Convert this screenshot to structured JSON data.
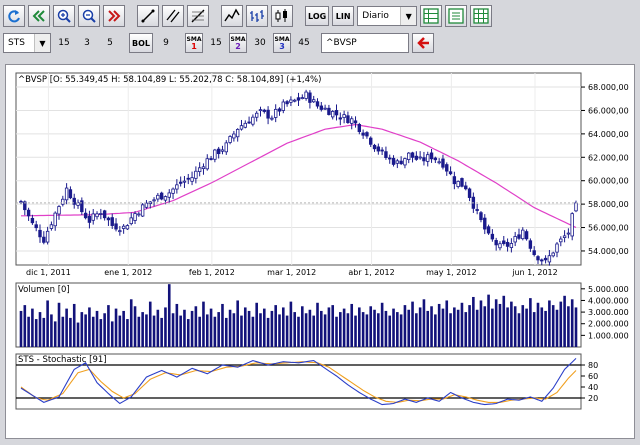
{
  "toolbar": {
    "log_label": "LOG",
    "lin_label": "LIN",
    "period_value": "Diario",
    "indicator_value": "STS",
    "sts_params": [
      "15",
      "3",
      "5"
    ],
    "bol_label": "BOL",
    "bol_param": "9",
    "sma_label": "SMA",
    "sma": [
      {
        "n": "1",
        "param": "15"
      },
      {
        "n": "2",
        "param": "30"
      },
      {
        "n": "3",
        "param": "45"
      }
    ],
    "symbol_value": "^BVSP",
    "icons": [
      "refresh-icon",
      "double-left-icon",
      "zoom-in-icon",
      "zoom-out-icon",
      "double-right-icon",
      "line-tool-icon",
      "channel-tool-icon",
      "fibonacci-tool-icon",
      "line-chart-icon",
      "ohlc-chart-icon",
      "candle-chart-icon",
      "grid-icon",
      "properties-icon",
      "table-icon",
      "back-arrow-icon"
    ]
  },
  "chart_data": [
    {
      "type": "ohlc",
      "title": "^BVSP [O: 55.349,45  H: 58.104,89  L: 55.202,78  C: 58.104,89] (+1,4%)",
      "x": [
        "dic 1, 2011",
        "ene 1, 2012",
        "feb 1, 2012",
        "mar 1, 2012",
        "abr 1, 2012",
        "may 1, 2012",
        "jun 1, 2012"
      ],
      "ylim": [
        52800,
        69200
      ],
      "yticks": [
        "54.000,00",
        "56.000,00",
        "58.000,00",
        "60.000,00",
        "62.000,00",
        "64.000,00",
        "66.000,00",
        "68.000,00"
      ],
      "ytick_values": [
        54000,
        56000,
        58000,
        60000,
        62000,
        64000,
        66000,
        68000
      ],
      "close_anchors": [
        [
          0,
          58200
        ],
        [
          3,
          56300
        ],
        [
          6,
          55000
        ],
        [
          9,
          57200
        ],
        [
          12,
          59300
        ],
        [
          15,
          57800
        ],
        [
          18,
          56600
        ],
        [
          21,
          57400
        ],
        [
          24,
          56200
        ],
        [
          27,
          56000
        ],
        [
          30,
          57200
        ],
        [
          33,
          58000
        ],
        [
          36,
          58600
        ],
        [
          39,
          59000
        ],
        [
          42,
          59800
        ],
        [
          45,
          60300
        ],
        [
          48,
          61500
        ],
        [
          51,
          62300
        ],
        [
          54,
          63000
        ],
        [
          57,
          64500
        ],
        [
          60,
          65200
        ],
        [
          63,
          65800
        ],
        [
          66,
          65500
        ],
        [
          69,
          66400
        ],
        [
          72,
          66800
        ],
        [
          75,
          67300
        ],
        [
          78,
          66400
        ],
        [
          81,
          66000
        ],
        [
          84,
          65500
        ],
        [
          87,
          65200
        ],
        [
          90,
          64200
        ],
        [
          93,
          63000
        ],
        [
          96,
          62000
        ],
        [
          99,
          61500
        ],
        [
          102,
          62200
        ],
        [
          105,
          61700
        ],
        [
          108,
          62100
        ],
        [
          111,
          61500
        ],
        [
          114,
          60000
        ],
        [
          117,
          59500
        ],
        [
          120,
          57200
        ],
        [
          123,
          55200
        ],
        [
          126,
          54300
        ],
        [
          129,
          54600
        ],
        [
          132,
          55800
        ],
        [
          135,
          53800
        ],
        [
          138,
          53000
        ],
        [
          141,
          54500
        ],
        [
          144,
          55600
        ],
        [
          146,
          58100
        ]
      ],
      "last_close": 58104.89,
      "series": [
        {
          "name": "^BVSP",
          "color": "#1a1a8c"
        },
        {
          "name": "SMA",
          "color": "#e040c8",
          "values": [
            [
              0,
              57000
            ],
            [
              20,
              57100
            ],
            [
              30,
              57300
            ],
            [
              40,
              58300
            ],
            [
              50,
              59800
            ],
            [
              60,
              61500
            ],
            [
              70,
              63200
            ],
            [
              80,
              64400
            ],
            [
              88,
              64800
            ],
            [
              95,
              64400
            ],
            [
              105,
              63300
            ],
            [
              115,
              61700
            ],
            [
              125,
              59800
            ],
            [
              135,
              57700
            ],
            [
              146,
              56000
            ]
          ]
        }
      ]
    },
    {
      "type": "bar",
      "title": "Volumen [0]",
      "ylim": [
        0,
        5500000
      ],
      "yticks": [
        "1.000.000",
        "2.000.000",
        "3.000.000",
        "4.000.000",
        "5.000.000"
      ],
      "ytick_values": [
        1000000,
        2000000,
        3000000,
        4000000,
        5000000
      ],
      "values_m": [
        3.1,
        3.6,
        2.6,
        3.3,
        2.4,
        3.0,
        2.5,
        4.0,
        2.8,
        2.2,
        3.8,
        2.6,
        3.3,
        2.5,
        3.7,
        2.1,
        3.0,
        2.8,
        3.4,
        2.6,
        3.1,
        2.4,
        2.9,
        3.6,
        2.2,
        3.3,
        2.7,
        3.1,
        2.4,
        4.1,
        3.5,
        2.6,
        3.0,
        2.8,
        3.9,
        2.7,
        3.2,
        2.5,
        3.4,
        5.4,
        2.9,
        3.7,
        2.7,
        3.2,
        2.4,
        3.1,
        3.5,
        2.6,
        3.9,
        2.8,
        3.3,
        2.6,
        3.0,
        3.7,
        2.5,
        3.2,
        2.9,
        4.0,
        2.7,
        3.4,
        3.1,
        2.6,
        3.8,
        2.9,
        3.3,
        2.5,
        3.1,
        3.6,
        2.8,
        3.4,
        2.7,
        3.9,
        3.0,
        2.6,
        3.5,
        2.9,
        3.2,
        2.7,
        3.8,
        3.1,
        2.8,
        3.4,
        3.6,
        2.6,
        3.0,
        3.3,
        2.9,
        3.7,
        2.7,
        3.4,
        3.0,
        2.8,
        3.5,
        3.2,
        2.9,
        3.8,
        3.1,
        2.7,
        3.3,
        3.0,
        2.8,
        3.6,
        3.2,
        3.9,
        2.9,
        3.4,
        4.1,
        3.1,
        3.5,
        2.8,
        3.7,
        3.3,
        4.0,
        2.9,
        3.4,
        3.2,
        3.8,
        3.0,
        3.6,
        4.3,
        3.2,
        4.0,
        3.5,
        4.5,
        3.3,
        4.1,
        3.7,
        4.4,
        3.4,
        3.9,
        3.5,
        2.9,
        3.6,
        3.3,
        4.2,
        3.0,
        3.8,
        3.4,
        3.1,
        4.0,
        3.6,
        3.2,
        3.9,
        4.4,
        3.5,
        4.1,
        3.4
      ],
      "series": [
        {
          "name": "Volumen",
          "color": "#12127a"
        }
      ]
    },
    {
      "type": "line",
      "title": "STS - Stochastic [91]",
      "ylim": [
        0,
        100
      ],
      "yticks": [
        "20",
        "40",
        "60",
        "80"
      ],
      "ytick_values": [
        20,
        40,
        60,
        80
      ],
      "reference_lines": [
        20,
        80
      ],
      "series": [
        {
          "name": "K",
          "color": "#2b3fc8",
          "values": [
            [
              0,
              38
            ],
            [
              3,
              25
            ],
            [
              6,
              12
            ],
            [
              10,
              22
            ],
            [
              14,
              72
            ],
            [
              17,
              84
            ],
            [
              20,
              48
            ],
            [
              23,
              28
            ],
            [
              26,
              10
            ],
            [
              29,
              22
            ],
            [
              33,
              58
            ],
            [
              37,
              70
            ],
            [
              41,
              58
            ],
            [
              45,
              74
            ],
            [
              49,
              64
            ],
            [
              53,
              80
            ],
            [
              57,
              76
            ],
            [
              61,
              88
            ],
            [
              65,
              80
            ],
            [
              69,
              86
            ],
            [
              73,
              84
            ],
            [
              77,
              88
            ],
            [
              80,
              74
            ],
            [
              83,
              60
            ],
            [
              86,
              44
            ],
            [
              89,
              30
            ],
            [
              92,
              18
            ],
            [
              95,
              8
            ],
            [
              98,
              10
            ],
            [
              101,
              18
            ],
            [
              104,
              12
            ],
            [
              107,
              20
            ],
            [
              110,
              14
            ],
            [
              113,
              30
            ],
            [
              116,
              20
            ],
            [
              119,
              12
            ],
            [
              122,
              8
            ],
            [
              125,
              10
            ],
            [
              128,
              18
            ],
            [
              131,
              16
            ],
            [
              134,
              22
            ],
            [
              137,
              14
            ],
            [
              140,
              38
            ],
            [
              143,
              72
            ],
            [
              146,
              92
            ]
          ]
        },
        {
          "name": "D",
          "color": "#f0a020",
          "values": [
            [
              0,
              40
            ],
            [
              4,
              20
            ],
            [
              7,
              16
            ],
            [
              11,
              28
            ],
            [
              15,
              66
            ],
            [
              18,
              72
            ],
            [
              21,
              50
            ],
            [
              24,
              32
            ],
            [
              27,
              20
            ],
            [
              30,
              28
            ],
            [
              34,
              54
            ],
            [
              38,
              66
            ],
            [
              42,
              62
            ],
            [
              46,
              70
            ],
            [
              50,
              68
            ],
            [
              54,
              76
            ],
            [
              58,
              78
            ],
            [
              62,
              84
            ],
            [
              66,
              82
            ],
            [
              70,
              84
            ],
            [
              74,
              86
            ],
            [
              78,
              84
            ],
            [
              81,
              76
            ],
            [
              84,
              62
            ],
            [
              87,
              48
            ],
            [
              90,
              34
            ],
            [
              93,
              22
            ],
            [
              96,
              14
            ],
            [
              99,
              12
            ],
            [
              102,
              16
            ],
            [
              105,
              15
            ],
            [
              108,
              18
            ],
            [
              111,
              18
            ],
            [
              114,
              26
            ],
            [
              117,
              22
            ],
            [
              120,
              16
            ],
            [
              123,
              12
            ],
            [
              126,
              12
            ],
            [
              129,
              16
            ],
            [
              132,
              18
            ],
            [
              135,
              20
            ],
            [
              138,
              18
            ],
            [
              141,
              30
            ],
            [
              144,
              56
            ],
            [
              146,
              70
            ]
          ]
        }
      ]
    }
  ]
}
